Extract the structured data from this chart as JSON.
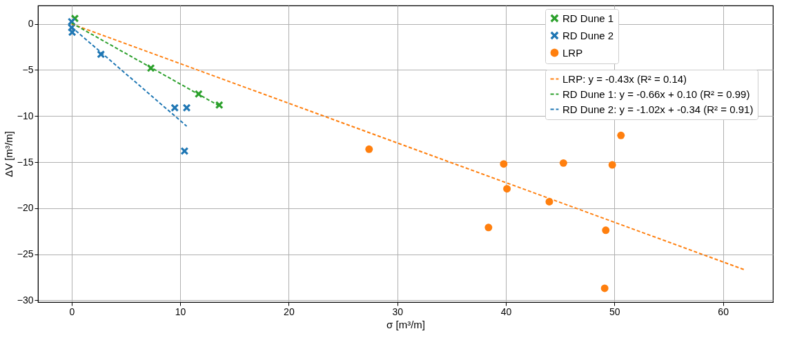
{
  "chart_data": {
    "type": "scatter",
    "xlabel": "σ [m³/m]",
    "ylabel": "ΔV  [m³/m]",
    "xlim": [
      -3.1,
      64.6
    ],
    "ylim": [
      -30.2,
      2.0
    ],
    "xticks": [
      0,
      10,
      20,
      30,
      40,
      50,
      60
    ],
    "yticks": [
      0,
      -5,
      -10,
      -15,
      -20,
      -25,
      -30
    ],
    "grid": true,
    "legend": "top right",
    "series": [
      {
        "name": "RD Dune 1",
        "marker": "cross",
        "color": "#2ca02c",
        "x": [
          0.3,
          7.3,
          11.7,
          13.6
        ],
        "values": [
          0.6,
          -4.8,
          -7.6,
          -8.8
        ]
      },
      {
        "name": "RD Dune 2",
        "marker": "cross",
        "color": "#1f77b4",
        "x": [
          0.0,
          0.05,
          0.0,
          2.7,
          9.5,
          10.6,
          10.4
        ],
        "values": [
          0.25,
          -0.9,
          -0.4,
          -3.3,
          -9.1,
          -9.1,
          -13.8
        ]
      },
      {
        "name": "LRP",
        "marker": "circle",
        "color": "#ff7f0e",
        "x": [
          27.4,
          39.8,
          45.3,
          49.8,
          50.6,
          40.1,
          44.0,
          38.4,
          49.2,
          49.1
        ],
        "values": [
          -13.6,
          -15.2,
          -15.1,
          -15.3,
          -12.1,
          -17.9,
          -19.3,
          -22.1,
          -22.4,
          -28.7
        ]
      },
      {
        "name": "LRP: y = -0.43x (R² = 0.14)",
        "type": "line",
        "line_style": "dashed",
        "color": "#ff7f0e",
        "x": [
          0,
          62
        ],
        "values": [
          0,
          -26.7
        ]
      },
      {
        "name": "RD Dune 1: y = -0.66x + 0.10 (R² = 0.99)",
        "type": "line",
        "line_style": "dashed",
        "color": "#2ca02c",
        "x": [
          0,
          13.6
        ],
        "values": [
          0.1,
          -8.9
        ]
      },
      {
        "name": "RD Dune 2: y = -1.02x + -0.34 (R² = 0.91)",
        "type": "line",
        "line_style": "dashed",
        "color": "#1f77b4",
        "x": [
          0,
          10.6
        ],
        "values": [
          -0.34,
          -11.1
        ]
      }
    ]
  }
}
